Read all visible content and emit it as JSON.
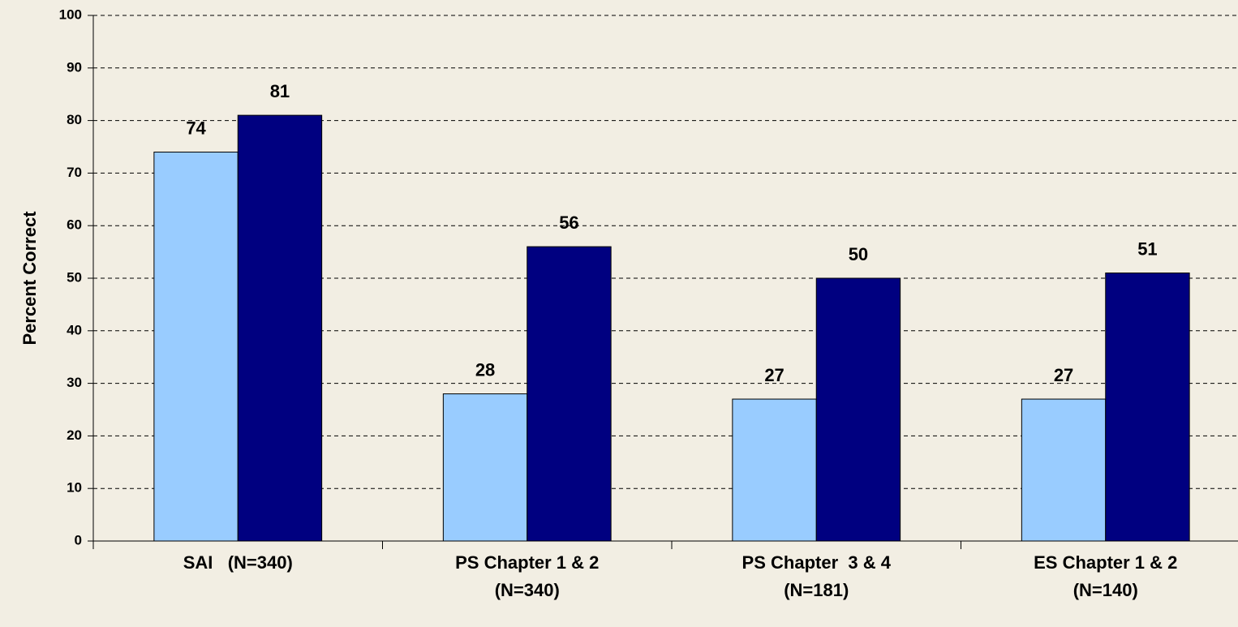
{
  "chart_data": {
    "type": "bar",
    "y_label": "Percent Correct",
    "categories": [
      "SAI   (N=340)",
      "PS Chapter 1 & 2\n(N=340)",
      "PS Chapter  3 & 4\n(N=181)",
      "ES Chapter 1 & 2\n(N=140)"
    ],
    "series": [
      {
        "color": "#99ccff",
        "values": [
          74,
          28,
          27,
          27
        ]
      },
      {
        "color": "#000080",
        "values": [
          81,
          56,
          50,
          51
        ]
      }
    ],
    "ylim": [
      0,
      100
    ],
    "yticks": [
      0,
      10,
      20,
      30,
      40,
      50,
      60,
      70,
      80,
      90,
      100
    ],
    "grid": true
  }
}
